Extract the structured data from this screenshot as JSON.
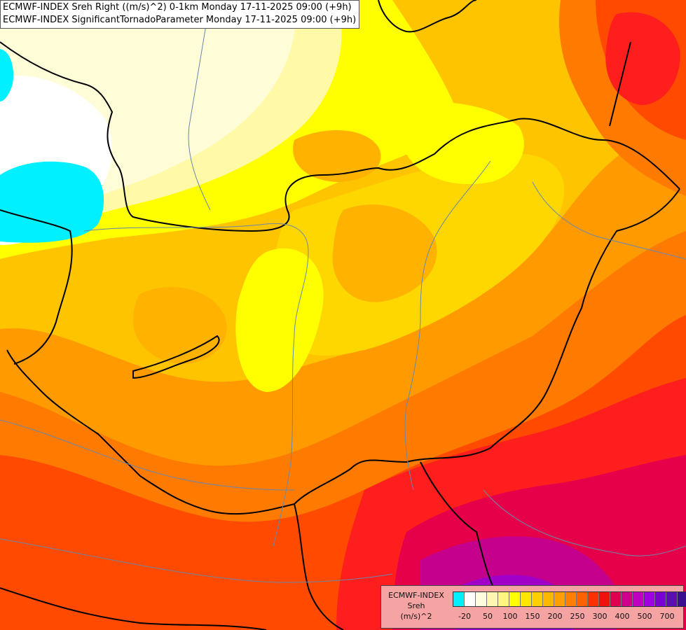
{
  "titles": {
    "line1": "ECMWF-INDEX Sreh Right ((m/s)^2) 0-1km Monday 17-11-2025 09:00 (+9h)",
    "line2": "ECMWF-INDEX SignificantTornadoParameter Monday 17-11-2025 09:00 (+9h)"
  },
  "legend": {
    "source": "ECMWF-INDEX",
    "variable": "Sreh",
    "unit": "(m/s)^2",
    "colors": [
      "#00f0ff",
      "#ffffff",
      "#fffbe0",
      "#fff7b0",
      "#fff580",
      "#ffff00",
      "#ffe600",
      "#ffd000",
      "#ffb800",
      "#ff9f00",
      "#ff8000",
      "#ff6000",
      "#ff3000",
      "#f01010",
      "#e00050",
      "#d0008f",
      "#c000c0",
      "#a000e0",
      "#7a00d0",
      "#5a10b0",
      "#3a1090",
      "#1a0080"
    ],
    "ticks": [
      "-20",
      "50",
      "100",
      "150",
      "200",
      "250",
      "300",
      "400",
      "500",
      "700"
    ]
  },
  "map_colors": {
    "base": "#ffc400",
    "cyan": "#00f0ff",
    "white": "#ffffff",
    "pale_yellow": "#fffcd8",
    "light_yellow": "#fff9a8",
    "yellow": "#ffff00",
    "gold": "#ffd700",
    "amber": "#ffb300",
    "orange": "#ff9a00",
    "dark_orange": "#ff7a00",
    "red_orange": "#ff4a00",
    "red": "#ff1e1e",
    "crimson": "#e6004a",
    "magenta": "#c4008c",
    "violet": "#a000c8",
    "border": "#000000",
    "river": "#6a88a8"
  }
}
